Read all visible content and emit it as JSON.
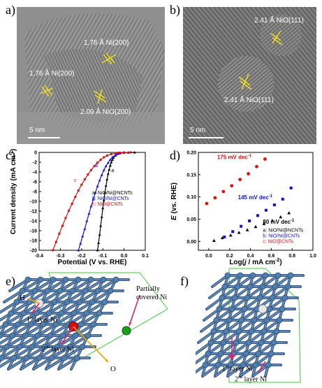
{
  "panels": {
    "a": {
      "label": "a)",
      "annotations": [
        "1.76 Å Ni(200)",
        "1.76 Å Ni(200)",
        "2.09 Å NiO(200)"
      ],
      "scale_bar": "5 nm"
    },
    "b": {
      "label": "b)",
      "annotations": [
        "2.41 Å NiO(111)",
        "2.41 Å NiO(111)"
      ],
      "scale_bar": "5 nm"
    },
    "c": {
      "label": "c)"
    },
    "d": {
      "label": "d)"
    },
    "e": {
      "label": "e)",
      "annotations": [
        "Partially",
        "covered Ni",
        "H",
        "O"
      ],
      "layer1_pre": "1",
      "layer1_sup": "st",
      "layer1_post": " layer Ni",
      "layer2_pre": "2",
      "layer2_sup": "nd",
      "layer2_post": " layer Ni"
    },
    "f": {
      "label": "f)",
      "layer1_pre": "1",
      "layer1_sup": "st",
      "layer1_post": " layer Ni",
      "layer2_pre": "2",
      "layer2_sup": "nd",
      "layer2_post": " layer Ni"
    }
  },
  "chart_data": [
    {
      "type": "line",
      "panel": "c",
      "xlabel": "Potential (V vs. RHE)",
      "ylabel_main": "Current density (mA cm",
      "ylabel_sup": "-2",
      "ylabel_end": ")",
      "xlim": [
        -0.4,
        0.1
      ],
      "ylim": [
        -20,
        0
      ],
      "xticks": [
        "-0.4",
        "-0.3",
        "-0.2",
        "-0.1",
        "0.0",
        "0.1"
      ],
      "yticks": [
        "0",
        "-2",
        "-4",
        "-6",
        "-8",
        "-10",
        "-12",
        "-14",
        "-16",
        "-18",
        "-20"
      ],
      "legend": [
        "a: NiO/Ni@NCNTs",
        "b: NiO/Ni@CNTs",
        "c: NiO@CNTs"
      ],
      "legend_colors": [
        "#000000",
        "#1010e0",
        "#e01010"
      ],
      "curve_labels": [
        "a",
        "b",
        "c"
      ],
      "series": [
        {
          "name": "a: NiO/Ni@NCNTs",
          "color": "#000000",
          "x": [
            -0.125,
            -0.12,
            -0.115,
            -0.11,
            -0.105,
            -0.1,
            -0.095,
            -0.09,
            -0.085,
            -0.08,
            -0.075,
            -0.07,
            -0.065,
            -0.06,
            -0.055,
            -0.05,
            -0.04,
            -0.03,
            -0.02,
            0.0,
            0.02,
            0.05
          ],
          "y": [
            -20,
            -18.5,
            -16.8,
            -15,
            -13.2,
            -11.4,
            -9.8,
            -8.2,
            -6.8,
            -5.5,
            -4.4,
            -3.5,
            -2.7,
            -2.0,
            -1.5,
            -1.1,
            -0.6,
            -0.3,
            -0.15,
            -0.05,
            -0.02,
            0
          ]
        },
        {
          "name": "b: NiO/Ni@CNTs",
          "color": "#1010e0",
          "x": [
            -0.215,
            -0.205,
            -0.195,
            -0.185,
            -0.175,
            -0.165,
            -0.155,
            -0.145,
            -0.135,
            -0.125,
            -0.115,
            -0.105,
            -0.095,
            -0.085,
            -0.075,
            -0.065,
            -0.055,
            -0.04,
            -0.02,
            0.0,
            0.03
          ],
          "y": [
            -20,
            -18.6,
            -17.1,
            -15.6,
            -14.0,
            -12.5,
            -11.0,
            -9.6,
            -8.2,
            -6.9,
            -5.7,
            -4.6,
            -3.6,
            -2.8,
            -2.1,
            -1.5,
            -1.0,
            -0.5,
            -0.2,
            -0.05,
            0
          ]
        },
        {
          "name": "c: NiO@CNTs",
          "color": "#e01010",
          "x": [
            -0.335,
            -0.32,
            -0.305,
            -0.29,
            -0.275,
            -0.26,
            -0.245,
            -0.23,
            -0.215,
            -0.2,
            -0.185,
            -0.17,
            -0.155,
            -0.14,
            -0.125,
            -0.11,
            -0.095,
            -0.08,
            -0.06,
            -0.04,
            -0.02,
            0.0,
            0.03
          ],
          "y": [
            -20,
            -18.3,
            -16.6,
            -15.0,
            -13.4,
            -11.9,
            -10.5,
            -9.1,
            -7.8,
            -6.6,
            -5.5,
            -4.5,
            -3.6,
            -2.8,
            -2.1,
            -1.5,
            -1.0,
            -0.65,
            -0.35,
            -0.15,
            -0.05,
            -0.01,
            0
          ]
        }
      ]
    },
    {
      "type": "scatter",
      "panel": "d",
      "xlabel_main": "Log(",
      "xlabel_j": "j",
      "xlabel_mid": " / mA cm",
      "xlabel_sup": "-2",
      "xlabel_end": ")",
      "ylabel_e": "E",
      "ylabel_rest": " (vs. RHE)",
      "xlim": [
        -0.1,
        1.0
      ],
      "ylim": [
        -0.02,
        0.2
      ],
      "xticks": [
        "0.0",
        "0.2",
        "0.4",
        "0.6",
        "0.8",
        "1.0"
      ],
      "yticks": [
        "0.00",
        "0.05",
        "0.10",
        "0.15",
        "0.20"
      ],
      "legend": [
        "a: NiO/Ni@NCNTs",
        "b: NiO/Ni@CNTs",
        "c: NiO@CNTs"
      ],
      "legend_colors": [
        "#000000",
        "#1010e0",
        "#e01010"
      ],
      "slope_labels": [
        {
          "text": "80 mV dec",
          "sup": "-1",
          "color": "#000000"
        },
        {
          "text": "145 mV dec",
          "sup": "-1",
          "color": "#1010e0"
        },
        {
          "text": "175 mV dec",
          "sup": "-1",
          "color": "#e01010"
        }
      ],
      "series": [
        {
          "name": "a: NiO/Ni@NCNTs",
          "color": "#000000",
          "marker": "triangle",
          "x": [
            0.05,
            0.13,
            0.21,
            0.29,
            0.37,
            0.45,
            0.53,
            0.61,
            0.69,
            0.77
          ],
          "y": [
            0.002,
            0.008,
            0.014,
            0.02,
            0.026,
            0.033,
            0.04,
            0.047,
            0.055,
            0.064
          ]
        },
        {
          "name": "b: NiO/Ni@CNTs",
          "color": "#1010e0",
          "marker": "square",
          "x": [
            0.15,
            0.23,
            0.31,
            0.39,
            0.47,
            0.55,
            0.63,
            0.71,
            0.79
          ],
          "y": [
            0.01,
            0.022,
            0.034,
            0.046,
            0.058,
            0.07,
            0.082,
            0.095,
            0.12
          ]
        },
        {
          "name": "c: NiO@CNTs",
          "color": "#e01010",
          "marker": "circle",
          "x": [
            -0.02,
            0.06,
            0.14,
            0.22,
            0.3,
            0.38,
            0.46,
            0.54
          ],
          "y": [
            0.085,
            0.098,
            0.112,
            0.125,
            0.139,
            0.152,
            0.168,
            0.185
          ]
        }
      ]
    }
  ]
}
